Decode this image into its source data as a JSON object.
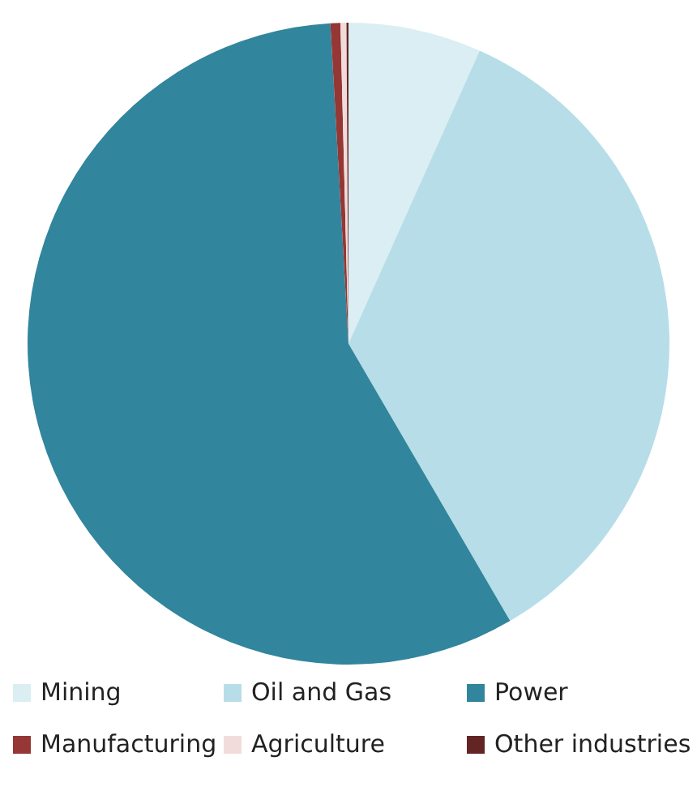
{
  "chart_data": {
    "type": "pie",
    "categories": [
      "Mining",
      "Oil and Gas",
      "Power",
      "Manufacturing",
      "Agriculture",
      "Other industries"
    ],
    "values": [
      6.7,
      34.9,
      57.5,
      0.5,
      0.3,
      0.1
    ],
    "colors": [
      "#daeef3",
      "#b7dee8",
      "#31859c",
      "#953735",
      "#f2dcdb",
      "#632523"
    ],
    "legend": "bottom"
  }
}
